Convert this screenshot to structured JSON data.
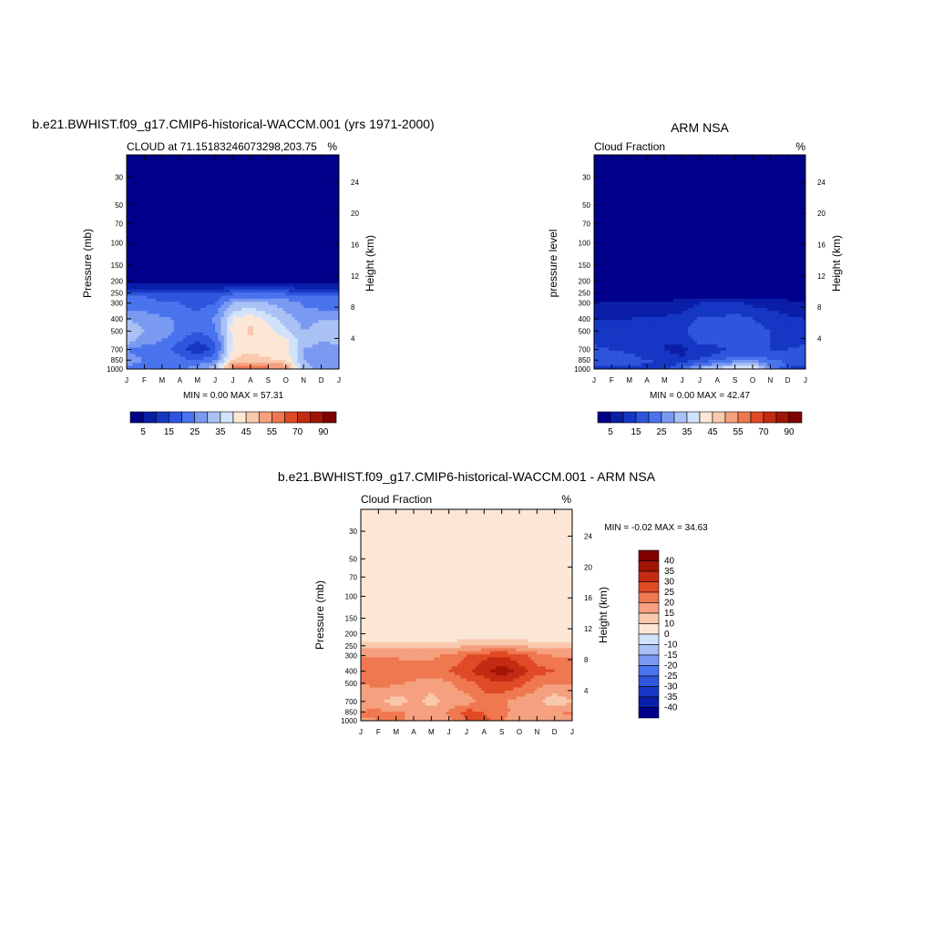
{
  "colors": {
    "abs_scale": [
      "#00008b",
      "#0a1ea8",
      "#1537c4",
      "#2e55dc",
      "#4a73ee",
      "#7a9af2",
      "#a9c1f4",
      "#d1e2fb",
      "#fce7d7",
      "#f9c9ad",
      "#f5a07f",
      "#f07850",
      "#e04b26",
      "#c42b12",
      "#a01505",
      "#800000"
    ],
    "diff_scale": [
      "#00008b",
      "#0a1ea8",
      "#1537c4",
      "#2e55dc",
      "#4a73ee",
      "#7a9af2",
      "#a9c1f4",
      "#d1e2fb",
      "#fce7d7",
      "#f9c9ad",
      "#f5a07f",
      "#f07850",
      "#e04b26",
      "#c42b12",
      "#a01505",
      "#800000"
    ]
  },
  "chart_data": [
    {
      "id": "model",
      "type": "heatmap",
      "title": "b.e21.BWHIST.f09_g17.CMIP6-historical-WACCM.001 (yrs 1971-2000)",
      "left_label": "CLOUD at 71.15183246073298,203.75",
      "right_label": "%",
      "ylabel": "Pressure (mb)",
      "ylabel_right": "Height (km)",
      "x_ticks": [
        "J",
        "F",
        "M",
        "A",
        "M",
        "J",
        "J",
        "A",
        "S",
        "O",
        "N",
        "D",
        "J"
      ],
      "p_ticks": [
        30,
        50,
        70,
        100,
        150,
        200,
        250,
        300,
        400,
        500,
        700,
        850,
        1000
      ],
      "h_ticks": [
        24,
        20,
        16,
        12,
        8,
        4
      ],
      "plim": [
        20,
        1000
      ],
      "stats": "MIN =   0.00 MAX =  57.31",
      "colorbar_labels": [
        "5",
        "15",
        "25",
        "35",
        "45",
        "55",
        "70",
        "90"
      ],
      "colorbar_levels": [
        0,
        5,
        10,
        15,
        20,
        25,
        30,
        35,
        40,
        45,
        50,
        55,
        60,
        70,
        80,
        90,
        100
      ],
      "profiles": {
        "levels_mb": [
          30,
          100,
          200,
          230,
          260,
          300,
          400,
          500,
          600,
          700,
          850,
          950
        ],
        "months": [
          [
            0,
            0,
            0,
            10,
            20,
            22,
            30,
            35,
            32,
            25,
            28,
            25
          ],
          [
            0,
            0,
            0,
            10,
            20,
            22,
            28,
            30,
            28,
            22,
            25,
            23
          ],
          [
            0,
            0,
            0,
            10,
            18,
            20,
            26,
            28,
            25,
            22,
            24,
            24
          ],
          [
            0,
            0,
            0,
            10,
            18,
            20,
            24,
            24,
            20,
            18,
            22,
            24
          ],
          [
            0,
            0,
            0,
            10,
            18,
            18,
            22,
            20,
            15,
            10,
            20,
            26
          ],
          [
            0,
            0,
            0,
            10,
            18,
            20,
            26,
            24,
            20,
            18,
            24,
            32
          ],
          [
            0,
            0,
            0,
            12,
            22,
            30,
            40,
            42,
            40,
            42,
            45,
            55
          ],
          [
            0,
            0,
            0,
            12,
            22,
            32,
            44,
            46,
            44,
            44,
            48,
            57
          ],
          [
            0,
            0,
            0,
            12,
            22,
            30,
            38,
            42,
            42,
            42,
            46,
            55
          ],
          [
            0,
            0,
            0,
            12,
            22,
            28,
            32,
            36,
            42,
            42,
            44,
            52
          ],
          [
            0,
            0,
            0,
            10,
            20,
            24,
            28,
            30,
            32,
            30,
            30,
            33
          ],
          [
            0,
            0,
            0,
            10,
            20,
            22,
            30,
            32,
            30,
            28,
            28,
            26
          ],
          [
            0,
            0,
            0,
            10,
            20,
            22,
            30,
            35,
            32,
            25,
            28,
            25
          ]
        ]
      }
    },
    {
      "id": "obs",
      "type": "heatmap",
      "title": "ARM NSA",
      "left_label": "Cloud Fraction",
      "right_label": "%",
      "ylabel": "pressure level",
      "ylabel_right": "Height (km)",
      "x_ticks": [
        "J",
        "F",
        "M",
        "A",
        "M",
        "J",
        "J",
        "A",
        "S",
        "O",
        "N",
        "D",
        "J"
      ],
      "p_ticks": [
        30,
        50,
        70,
        100,
        150,
        200,
        250,
        300,
        400,
        500,
        700,
        850,
        1000
      ],
      "h_ticks": [
        24,
        20,
        16,
        12,
        8,
        4
      ],
      "plim": [
        20,
        1000
      ],
      "stats": "MIN =   0.00 MAX =  42.47",
      "colorbar_labels": [
        "5",
        "15",
        "25",
        "35",
        "45",
        "55",
        "70",
        "90"
      ],
      "colorbar_levels": [
        0,
        5,
        10,
        15,
        20,
        25,
        30,
        35,
        40,
        45,
        50,
        55,
        60,
        70,
        80,
        90,
        100
      ],
      "profiles": {
        "levels_mb": [
          30,
          200,
          270,
          300,
          400,
          500,
          600,
          700,
          800,
          900,
          980
        ],
        "months": [
          [
            0,
            0,
            3,
            6,
            10,
            12,
            14,
            16,
            18,
            20,
            12
          ],
          [
            0,
            0,
            3,
            6,
            10,
            12,
            13,
            15,
            17,
            18,
            10
          ],
          [
            0,
            0,
            3,
            6,
            10,
            12,
            13,
            14,
            16,
            18,
            10
          ],
          [
            0,
            0,
            3,
            6,
            11,
            12,
            12,
            12,
            14,
            16,
            10
          ],
          [
            0,
            0,
            3,
            6,
            11,
            11,
            10,
            10,
            12,
            15,
            12
          ],
          [
            0,
            0,
            4,
            7,
            12,
            14,
            12,
            8,
            10,
            14,
            20
          ],
          [
            0,
            0,
            5,
            10,
            16,
            18,
            16,
            14,
            14,
            20,
            30
          ],
          [
            0,
            0,
            5,
            10,
            16,
            18,
            16,
            14,
            16,
            24,
            35
          ],
          [
            0,
            0,
            5,
            11,
            17,
            19,
            18,
            16,
            20,
            28,
            38
          ],
          [
            0,
            0,
            4,
            9,
            15,
            17,
            16,
            16,
            20,
            30,
            42
          ],
          [
            0,
            0,
            4,
            8,
            13,
            15,
            15,
            15,
            18,
            24,
            25
          ],
          [
            0,
            0,
            3,
            7,
            11,
            13,
            14,
            15,
            17,
            20,
            15
          ],
          [
            0,
            0,
            3,
            6,
            10,
            12,
            14,
            16,
            18,
            20,
            12
          ]
        ]
      }
    },
    {
      "id": "diff",
      "type": "heatmap",
      "title": "b.e21.BWHIST.f09_g17.CMIP6-historical-WACCM.001 - ARM NSA",
      "left_label": "Cloud Fraction",
      "right_label": "%",
      "ylabel": "Pressure (mb)",
      "ylabel_right": "Height (km)",
      "x_ticks": [
        "J",
        "F",
        "M",
        "A",
        "M",
        "J",
        "J",
        "A",
        "S",
        "O",
        "N",
        "D",
        "J"
      ],
      "p_ticks": [
        30,
        50,
        70,
        100,
        150,
        200,
        250,
        300,
        400,
        500,
        700,
        850,
        1000
      ],
      "h_ticks": [
        24,
        20,
        16,
        12,
        8,
        4
      ],
      "plim": [
        20,
        1000
      ],
      "stats": "MIN =  -0.02 MAX =  34.63",
      "colorbar_labels": [
        "40",
        "35",
        "30",
        "25",
        "20",
        "15",
        "10",
        "0",
        "-10",
        "-15",
        "-20",
        "-25",
        "-30",
        "-35",
        "-40"
      ],
      "colorbar_levels": [
        -45,
        -40,
        -35,
        -30,
        -25,
        -20,
        -15,
        -10,
        -5,
        5,
        10,
        15,
        20,
        25,
        30,
        35,
        40,
        45
      ],
      "profiles": {
        "levels_mb": [
          30,
          50,
          70,
          100,
          130,
          160,
          200,
          250,
          300,
          400,
          500,
          700,
          850,
          1000
        ],
        "months": [
          [
            0.02,
            0.02,
            -0.02,
            -0.02,
            -0.02,
            0.02,
            0.02,
            8,
            14,
            20,
            15,
            10,
            16,
            14
          ],
          [
            0.02,
            0.02,
            -0.02,
            -0.02,
            -0.02,
            0.02,
            0.02,
            8,
            14,
            20,
            16,
            12,
            16,
            15
          ],
          [
            0.02,
            0.02,
            0.02,
            -0.02,
            -0.02,
            0.02,
            0.02,
            8,
            14,
            20,
            16,
            6,
            16,
            16
          ],
          [
            0.02,
            0.02,
            0.02,
            -0.02,
            0.02,
            0.02,
            0.02,
            8,
            14,
            18,
            14,
            12,
            14,
            14
          ],
          [
            0.02,
            0.02,
            0.02,
            -0.02,
            0.02,
            0.02,
            0.02,
            8,
            14,
            18,
            12,
            8,
            12,
            12
          ],
          [
            0.02,
            0.02,
            0.02,
            -0.02,
            0.02,
            0.02,
            0.02,
            8,
            16,
            20,
            14,
            12,
            16,
            14
          ],
          [
            0.02,
            0.02,
            0.02,
            -0.02,
            0.02,
            0.02,
            0.02,
            10,
            20,
            24,
            18,
            12,
            22,
            20
          ],
          [
            0.02,
            0.02,
            -0.02,
            -0.02,
            0.02,
            0.02,
            0.02,
            10,
            24,
            28,
            22,
            18,
            20,
            22
          ],
          [
            0.02,
            0.02,
            0.02,
            -0.02,
            0.02,
            0.02,
            0.02,
            12,
            25,
            34,
            24,
            16,
            16,
            16
          ],
          [
            0.02,
            0.02,
            0.02,
            -0.02,
            0.02,
            0.02,
            0.02,
            10,
            22,
            28,
            22,
            12,
            14,
            10
          ],
          [
            0.02,
            0.02,
            0.02,
            -0.02,
            0.02,
            0.02,
            0.02,
            8,
            18,
            22,
            16,
            12,
            12,
            12
          ],
          [
            0.02,
            -0.02,
            -0.02,
            -0.02,
            -0.02,
            0.02,
            0.02,
            8,
            14,
            20,
            15,
            6,
            14,
            14
          ],
          [
            -0.02,
            -0.02,
            -0.02,
            -0.02,
            -0.02,
            0.02,
            0.02,
            8,
            14,
            20,
            15,
            10,
            16,
            14
          ]
        ]
      }
    }
  ]
}
